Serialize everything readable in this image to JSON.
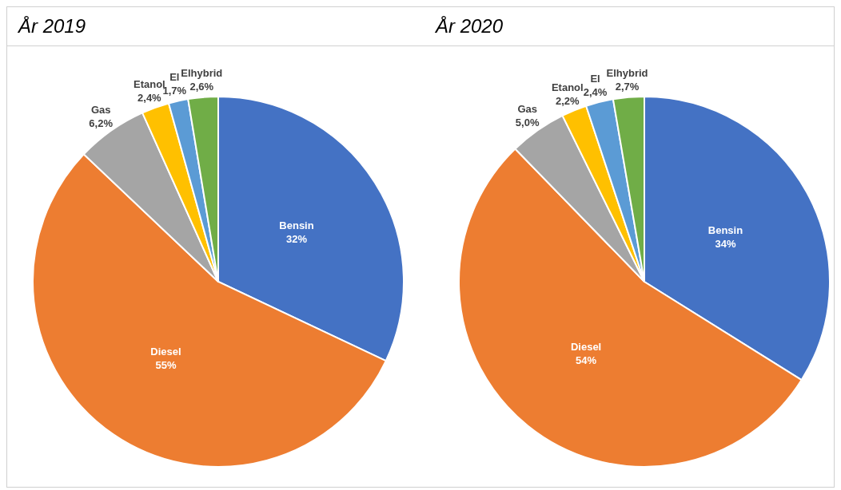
{
  "chart_data": [
    {
      "type": "pie",
      "title": "År 2019",
      "categories": [
        "Bensin",
        "Diesel",
        "Gas",
        "Etanol",
        "El",
        "Elhybrid"
      ],
      "values": [
        32,
        55,
        6.2,
        2.4,
        1.7,
        2.6
      ],
      "value_labels": [
        "32%",
        "55%",
        "6,2%",
        "2,4%",
        "1,7%",
        "2,6%"
      ],
      "colors": [
        "#4472c4",
        "#ed7d31",
        "#a5a5a5",
        "#ffc000",
        "#5b9bd5",
        "#70ad47"
      ]
    },
    {
      "type": "pie",
      "title": "År 2020",
      "categories": [
        "Bensin",
        "Diesel",
        "Gas",
        "Etanol",
        "El",
        "Elhybrid"
      ],
      "values": [
        34,
        54,
        5.0,
        2.2,
        2.4,
        2.7
      ],
      "value_labels": [
        "34%",
        "54%",
        "5,0%",
        "2,2%",
        "2,4%",
        "2,7%"
      ],
      "colors": [
        "#4472c4",
        "#ed7d31",
        "#a5a5a5",
        "#ffc000",
        "#5b9bd5",
        "#70ad47"
      ]
    }
  ]
}
